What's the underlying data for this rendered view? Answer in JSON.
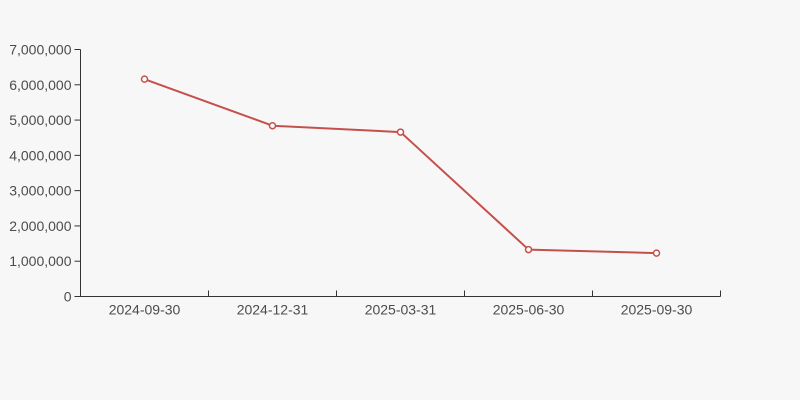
{
  "page": {
    "background": "#f7f7f7"
  },
  "colors": {
    "axis": "#333333",
    "label": "#4c4c4c",
    "line": "#c5504b",
    "marker_fill": "#ffffff",
    "background": "#f7f7f7"
  },
  "chart_data": {
    "type": "line",
    "title": "",
    "xlabel": "",
    "ylabel": "",
    "categories": [
      "2024-09-30",
      "2024-12-31",
      "2025-03-31",
      "2025-06-30",
      "2025-09-30"
    ],
    "values": [
      6160000,
      4840000,
      4660000,
      1330000,
      1230000
    ],
    "ylim": [
      0,
      7000000
    ],
    "ytick_interval": 1000000,
    "ytick_labels": [
      "0",
      "1,000,000",
      "2,000,000",
      "3,000,000",
      "4,000,000",
      "5,000,000",
      "6,000,000",
      "7,000,000"
    ],
    "grid": false,
    "legend": "none",
    "line_color": "#c5504b",
    "marker": "hollow-circle"
  }
}
